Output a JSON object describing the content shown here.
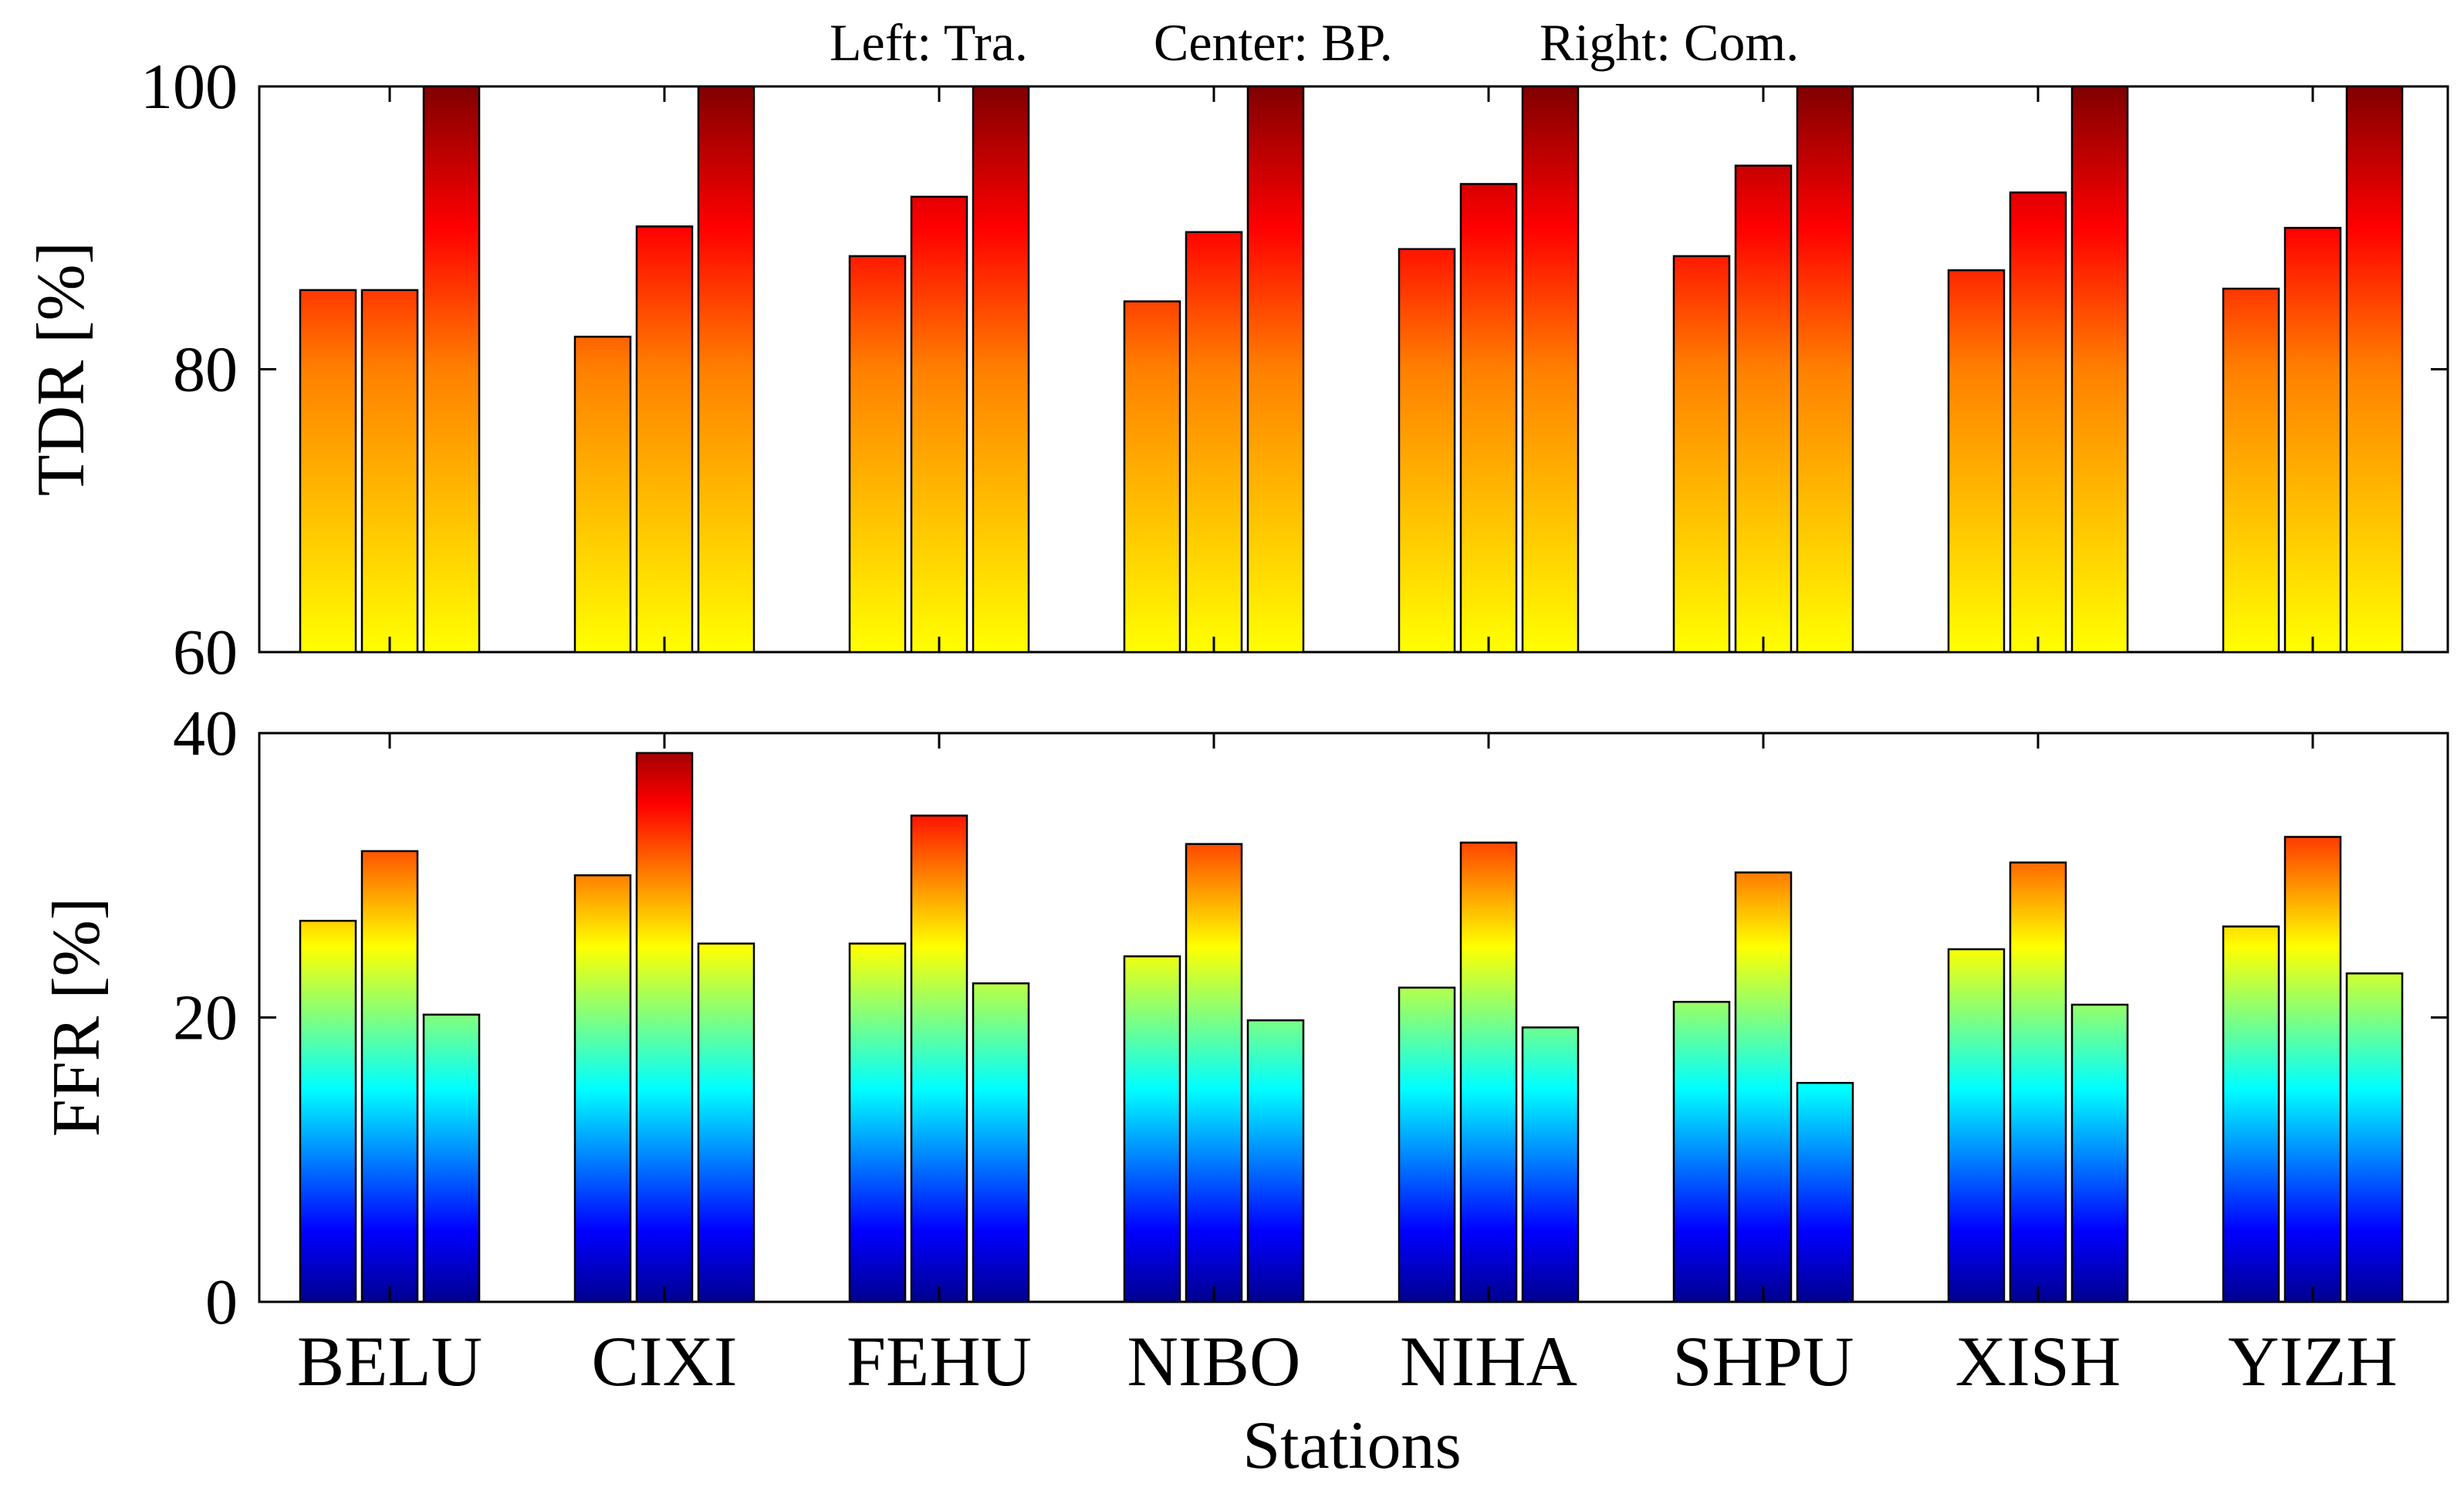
{
  "chart_data": [
    {
      "type": "bar",
      "panel": "top",
      "title": "",
      "legend_text": {
        "left": "Left: Tra.",
        "center": "Center: BP.",
        "right": "Right: Com."
      },
      "ylabel": "TDR [%]",
      "xlabel": "",
      "ylim": [
        60,
        100
      ],
      "yticks": [
        "60",
        "80",
        "100"
      ],
      "yticks_values": [
        60,
        80,
        100
      ],
      "colormap": "autumn",
      "categories": [
        "BELU",
        "CIXI",
        "FEHU",
        "NIBO",
        "NIHA",
        "SHPU",
        "XISH",
        "YIZH"
      ],
      "series": [
        {
          "name": "Tra.",
          "values": [
            85.6,
            82.3,
            88.0,
            84.8,
            88.5,
            88.0,
            87.0,
            85.7
          ]
        },
        {
          "name": "BP.",
          "values": [
            85.6,
            90.1,
            92.2,
            89.7,
            93.1,
            94.4,
            92.5,
            90.0
          ]
        },
        {
          "name": "Com.",
          "values": [
            100,
            100,
            100,
            100,
            100,
            100,
            100,
            100
          ]
        }
      ]
    },
    {
      "type": "bar",
      "panel": "bottom",
      "title": "",
      "ylabel": "FFR [%]",
      "xlabel": "Stations",
      "ylim": [
        0,
        40
      ],
      "yticks": [
        "0",
        "20",
        "40"
      ],
      "yticks_values": [
        0,
        20,
        40
      ],
      "colormap": "jet",
      "categories": [
        "BELU",
        "CIXI",
        "FEHU",
        "NIBO",
        "NIHA",
        "SHPU",
        "XISH",
        "YIZH"
      ],
      "series": [
        {
          "name": "Tra.",
          "values": [
            26.8,
            30.0,
            25.2,
            24.3,
            22.1,
            21.1,
            24.8,
            26.4
          ]
        },
        {
          "name": "BP.",
          "values": [
            31.7,
            38.6,
            34.2,
            32.2,
            32.3,
            30.2,
            30.9,
            32.7
          ]
        },
        {
          "name": "Com.",
          "values": [
            20.2,
            25.2,
            22.4,
            19.8,
            19.3,
            15.4,
            20.9,
            23.1
          ]
        }
      ]
    }
  ]
}
